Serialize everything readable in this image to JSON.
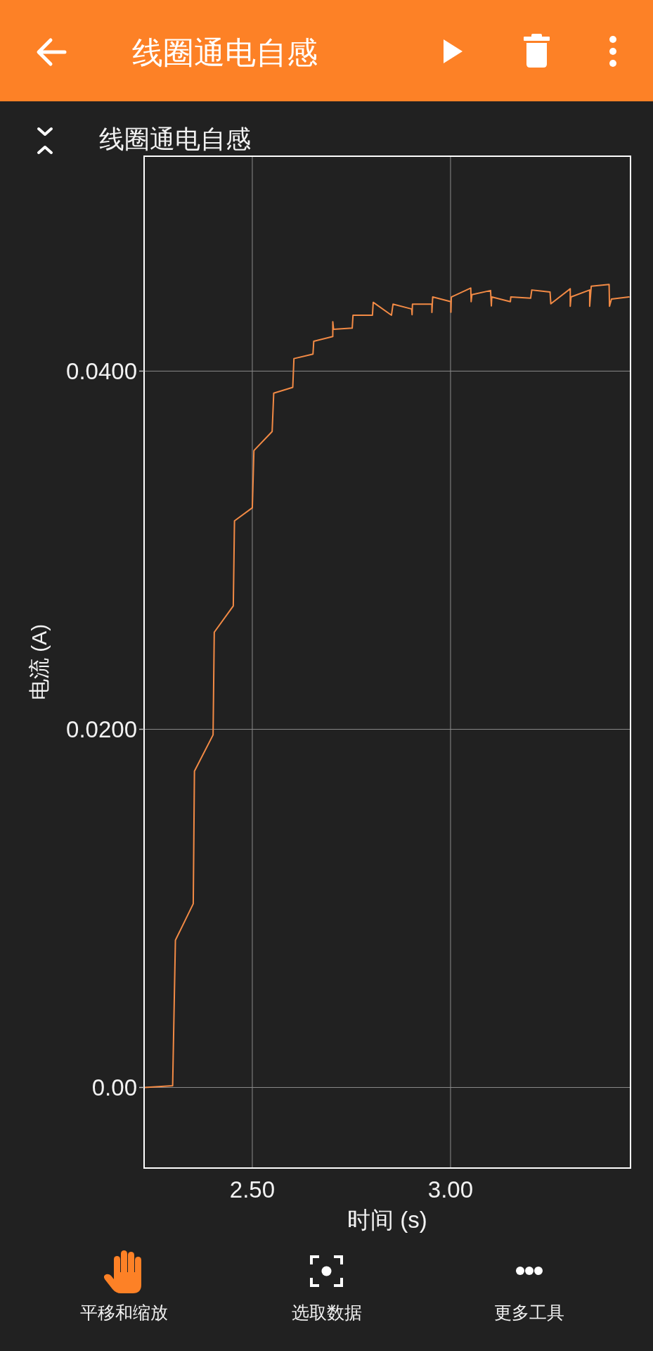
{
  "chart_data": {
    "type": "line",
    "title": "线圈通电自感",
    "xlabel": "时间 (s)",
    "ylabel": "电流 (A)",
    "annotations": [
      "线圈通电自感",
      "平移和缩放",
      "选取数据",
      "更多工具"
    ],
    "series": [
      {
        "color": "#f28a45",
        "x": [
          2.228,
          2.299,
          2.306,
          2.351,
          2.354,
          2.401,
          2.404,
          2.452,
          2.455,
          2.5,
          2.504,
          2.55,
          2.554,
          2.602,
          2.605,
          2.653,
          2.655,
          2.703,
          2.703,
          2.705,
          2.752,
          2.754,
          2.803,
          2.805,
          2.851,
          2.855,
          2.902,
          2.903,
          2.904,
          2.953,
          2.953,
          2.955,
          3.001,
          3.001,
          3.002,
          3.051,
          3.052,
          3.054,
          3.101,
          3.103,
          3.104,
          3.151,
          3.152,
          3.202,
          3.205,
          3.251,
          3.253,
          3.302,
          3.302,
          3.304,
          3.351,
          3.351,
          3.355,
          3.4,
          3.401,
          3.406,
          3.45
        ],
        "values": [
          0.0,
          0.0001,
          0.00822,
          0.01026,
          0.01766,
          0.01969,
          0.02542,
          0.02689,
          0.03164,
          0.03237,
          0.03556,
          0.03663,
          0.03877,
          0.03909,
          0.0407,
          0.04095,
          0.04167,
          0.04193,
          0.04276,
          0.04233,
          0.0424,
          0.04312,
          0.04312,
          0.04384,
          0.04312,
          0.04374,
          0.04347,
          0.04315,
          0.04374,
          0.04374,
          0.04328,
          0.04414,
          0.04388,
          0.04329,
          0.04414,
          0.04464,
          0.04388,
          0.04427,
          0.0445,
          0.04364,
          0.04414,
          0.04388,
          0.04414,
          0.04407,
          0.04453,
          0.04442,
          0.04376,
          0.0446,
          0.04362,
          0.04414,
          0.04453,
          0.04362,
          0.04474,
          0.04484,
          0.04362,
          0.04402,
          0.04414
        ]
      }
    ],
    "xlim": [
      2.227,
      3.454
    ],
    "ylim": [
      -0.0045,
      0.052
    ],
    "xticks": [
      {
        "value": 2.5,
        "label": "2.50"
      },
      {
        "value": 3,
        "label": "3.00"
      }
    ],
    "yticks": [
      {
        "value": 0,
        "label": "0.00"
      },
      {
        "value": 0.02,
        "label": "0.0200"
      },
      {
        "value": 0.04,
        "label": "0.0400"
      }
    ],
    "grid": true,
    "line_style": "solid"
  }
}
